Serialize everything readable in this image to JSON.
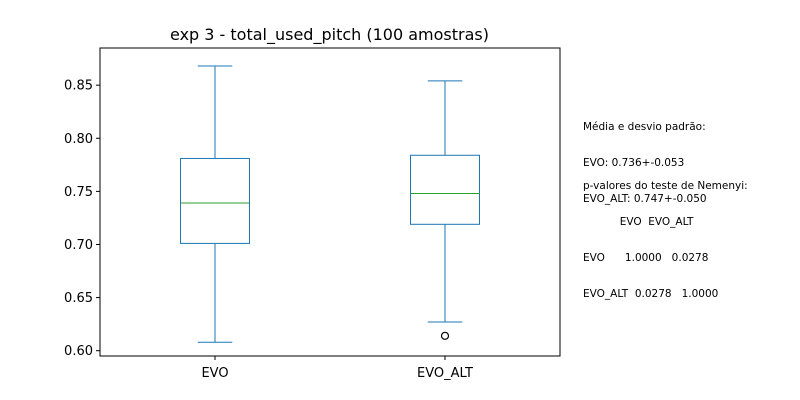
{
  "chart_data": {
    "type": "box",
    "title": "exp 3 - total_used_pitch (100 amostras)",
    "xlabel": "",
    "ylabel": "",
    "ylim": [
      0.595,
      0.885
    ],
    "yticks": [
      0.6,
      0.65,
      0.7,
      0.75,
      0.8,
      0.85
    ],
    "ytick_labels": [
      "0.60",
      "0.65",
      "0.70",
      "0.75",
      "0.80",
      "0.85"
    ],
    "categories": [
      "EVO",
      "EVO_ALT"
    ],
    "boxes": [
      {
        "name": "EVO",
        "whisker_low": 0.608,
        "q1": 0.701,
        "median": 0.739,
        "q3": 0.781,
        "whisker_high": 0.868,
        "outliers": []
      },
      {
        "name": "EVO_ALT",
        "whisker_low": 0.627,
        "q1": 0.719,
        "median": 0.748,
        "q3": 0.784,
        "whisker_high": 0.854,
        "outliers": [
          0.614
        ]
      }
    ],
    "colors": {
      "box": "#1f77b4",
      "median": "#2ca02c",
      "outlier": "#000000"
    }
  },
  "annotations": {
    "stats_header": "Média e desvio padrão:",
    "stats_lines": [
      "EVO: 0.736+-0.053",
      "EVO_ALT: 0.747+-0.050"
    ],
    "nemenyi_header": "p-valores do teste de Nemenyi:",
    "nemenyi_lines": [
      "           EVO  EVO_ALT",
      "EVO      1.0000   0.0278",
      "EVO_ALT  0.0278   1.0000"
    ]
  }
}
